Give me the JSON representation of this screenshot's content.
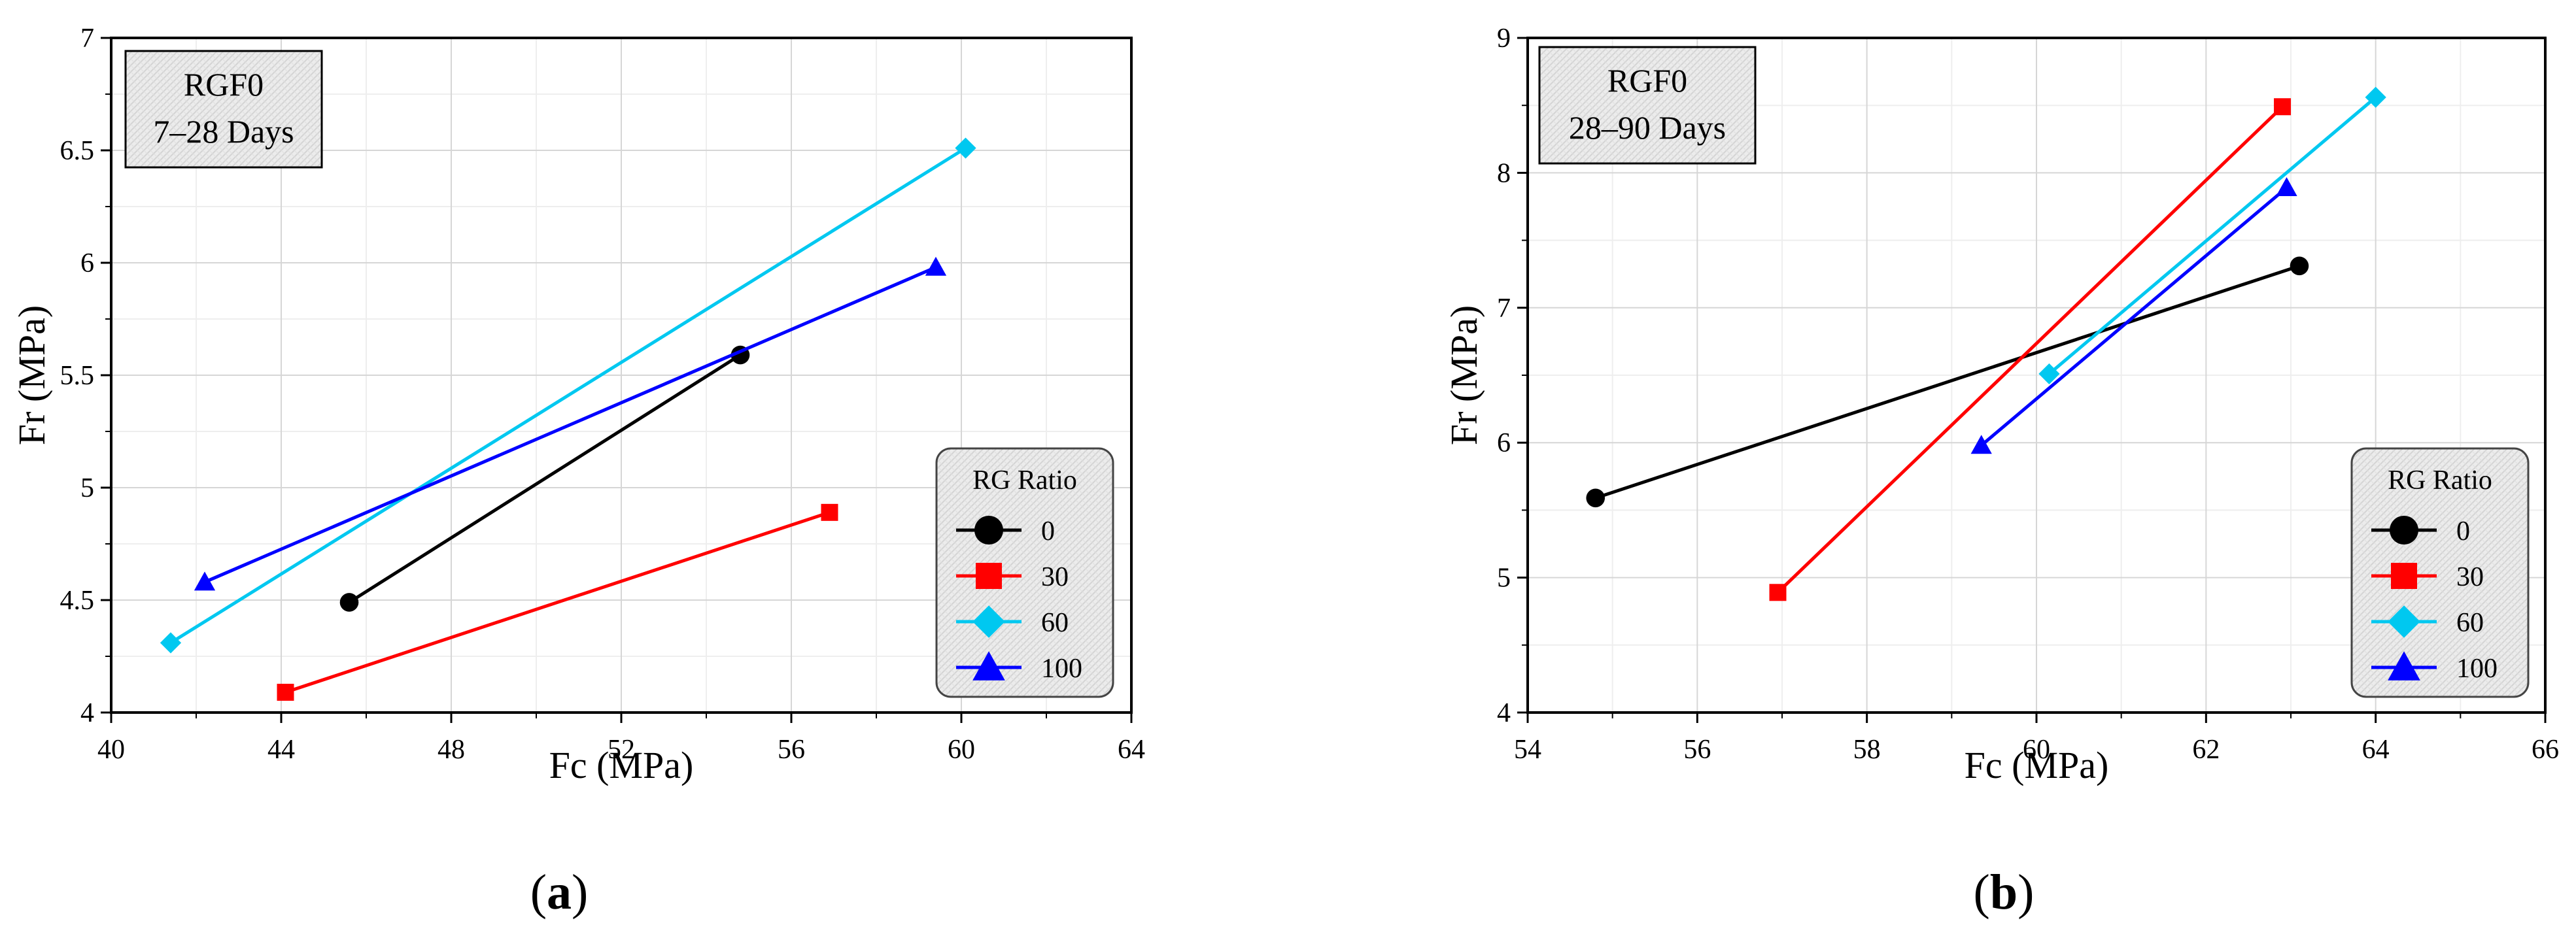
{
  "charts": [
    {
      "id": "a",
      "type": "line",
      "xlabel": "Fc (MPa)",
      "ylabel": "Fr (MPa)",
      "xlim": [
        40,
        64
      ],
      "ylim": [
        4,
        7
      ],
      "xticks": [
        40,
        44,
        48,
        52,
        56,
        60,
        64
      ],
      "yticks": [
        4,
        4.5,
        5,
        5.5,
        6,
        6.5,
        7
      ],
      "yminor": true,
      "info_box": {
        "line1": "RGF0",
        "line2": "7–28 Days"
      },
      "legend": {
        "title": "RG Ratio",
        "position": "bottom-right"
      },
      "series": [
        {
          "name": "0",
          "color": "#000000",
          "marker": "circle",
          "points": [
            [
              45.6,
              4.49
            ],
            [
              54.8,
              5.59
            ]
          ]
        },
        {
          "name": "30",
          "color": "#ff0000",
          "marker": "square",
          "points": [
            [
              44.1,
              4.09
            ],
            [
              56.9,
              4.89
            ]
          ]
        },
        {
          "name": "60",
          "color": "#00c8f0",
          "marker": "diamond",
          "points": [
            [
              41.4,
              4.31
            ],
            [
              60.1,
              6.51
            ]
          ]
        },
        {
          "name": "100",
          "color": "#0000ff",
          "marker": "triangle",
          "points": [
            [
              42.2,
              4.58
            ],
            [
              59.4,
              5.98
            ]
          ]
        }
      ],
      "panel_label": {
        "open": "(",
        "letter": "a",
        "close": ")"
      }
    },
    {
      "id": "b",
      "type": "line",
      "xlabel": "Fc (MPa)",
      "ylabel": "Fr (MPa)",
      "xlim": [
        54,
        66
      ],
      "ylim": [
        4,
        9
      ],
      "xticks": [
        54,
        56,
        58,
        60,
        62,
        64,
        66
      ],
      "yticks": [
        4,
        5,
        6,
        7,
        8,
        9
      ],
      "yminor": true,
      "info_box": {
        "line1": "RGF0",
        "line2": "28–90 Days"
      },
      "legend": {
        "title": "RG Ratio",
        "position": "bottom-right"
      },
      "series": [
        {
          "name": "0",
          "color": "#000000",
          "marker": "circle",
          "points": [
            [
              54.8,
              5.59
            ],
            [
              63.1,
              7.31
            ]
          ]
        },
        {
          "name": "30",
          "color": "#ff0000",
          "marker": "square",
          "points": [
            [
              56.95,
              4.89
            ],
            [
              62.9,
              8.49
            ]
          ]
        },
        {
          "name": "60",
          "color": "#00c8f0",
          "marker": "diamond",
          "points": [
            [
              60.15,
              6.51
            ],
            [
              64.0,
              8.56
            ]
          ]
        },
        {
          "name": "100",
          "color": "#0000ff",
          "marker": "triangle",
          "points": [
            [
              59.35,
              5.98
            ],
            [
              62.95,
              7.89
            ]
          ]
        }
      ],
      "panel_label": {
        "open": "(",
        "letter": "b",
        "close": ")"
      }
    }
  ]
}
